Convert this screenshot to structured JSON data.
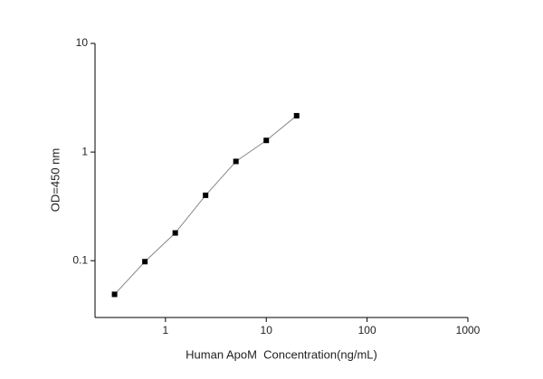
{
  "chart_data": {
    "type": "line",
    "log_x": true,
    "log_y": true,
    "xlabel": "Human ApoM  Concentration(ng/mL)",
    "ylabel": "OD=450 nm",
    "x": [
      0.3125,
      0.625,
      1.25,
      2.5,
      5,
      10,
      20
    ],
    "series": [
      {
        "color": "#000000",
        "line_color": "#888888",
        "values": [
          0.049,
          0.098,
          0.18,
          0.4,
          0.82,
          1.28,
          2.16
        ]
      }
    ],
    "xlim": [
      0.2,
      1000
    ],
    "xticks": [
      1,
      10,
      100,
      1000
    ],
    "ylim": [
      0.03,
      10
    ],
    "yticks": [
      0.1,
      1,
      10
    ]
  }
}
